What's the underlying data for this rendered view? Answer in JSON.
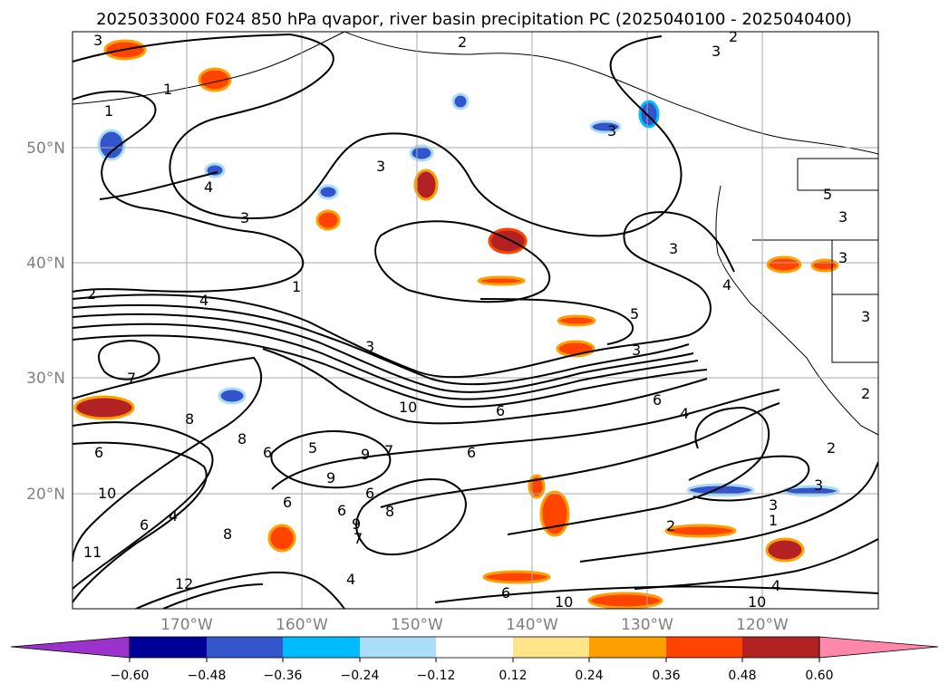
{
  "title": "2025033000 F024 850 hPa qvapor, river basin precipitation PC (2025040100 - 2025040400)",
  "map": {
    "lon_range": [
      -180,
      -110
    ],
    "lat_range": [
      10,
      60
    ],
    "lat_labels": [
      "50°N",
      "40°N",
      "30°N",
      "20°N"
    ],
    "lon_labels": [
      "170°W",
      "160°W",
      "150°W",
      "140°W",
      "130°W",
      "120°W"
    ],
    "grid": true,
    "background": "#ffffff"
  },
  "colorbar": {
    "orientation": "horizontal",
    "extend": "both",
    "ticks": [
      "−0.60",
      "−0.48",
      "−0.36",
      "−0.24",
      "−0.12",
      "0.12",
      "0.24",
      "0.36",
      "0.48",
      "0.60"
    ],
    "colors": [
      "#9933cc",
      "#000099",
      "#3355cc",
      "#00bbff",
      "#aaddf8",
      "#ffffff",
      "#ffe48a",
      "#ffa000",
      "#ff4400",
      "#b22222",
      "#ff88aa"
    ]
  },
  "contour_labels": [
    "3",
    "2",
    "2",
    "3",
    "1",
    "1",
    "3",
    "4",
    "3",
    "3",
    "3",
    "5",
    "3",
    "3",
    "4",
    "2",
    "1",
    "4",
    "3",
    "5",
    "3",
    "3",
    "7",
    "10",
    "6",
    "2",
    "8",
    "6",
    "6",
    "8",
    "9",
    "7",
    "6",
    "6",
    "5",
    "6",
    "4",
    "2",
    "2",
    "3",
    "3",
    "1",
    "10",
    "6",
    "4",
    "8",
    "7",
    "6",
    "6",
    "9",
    "8",
    "9",
    "4",
    "11",
    "12",
    "10",
    "10",
    "6",
    "4"
  ]
}
